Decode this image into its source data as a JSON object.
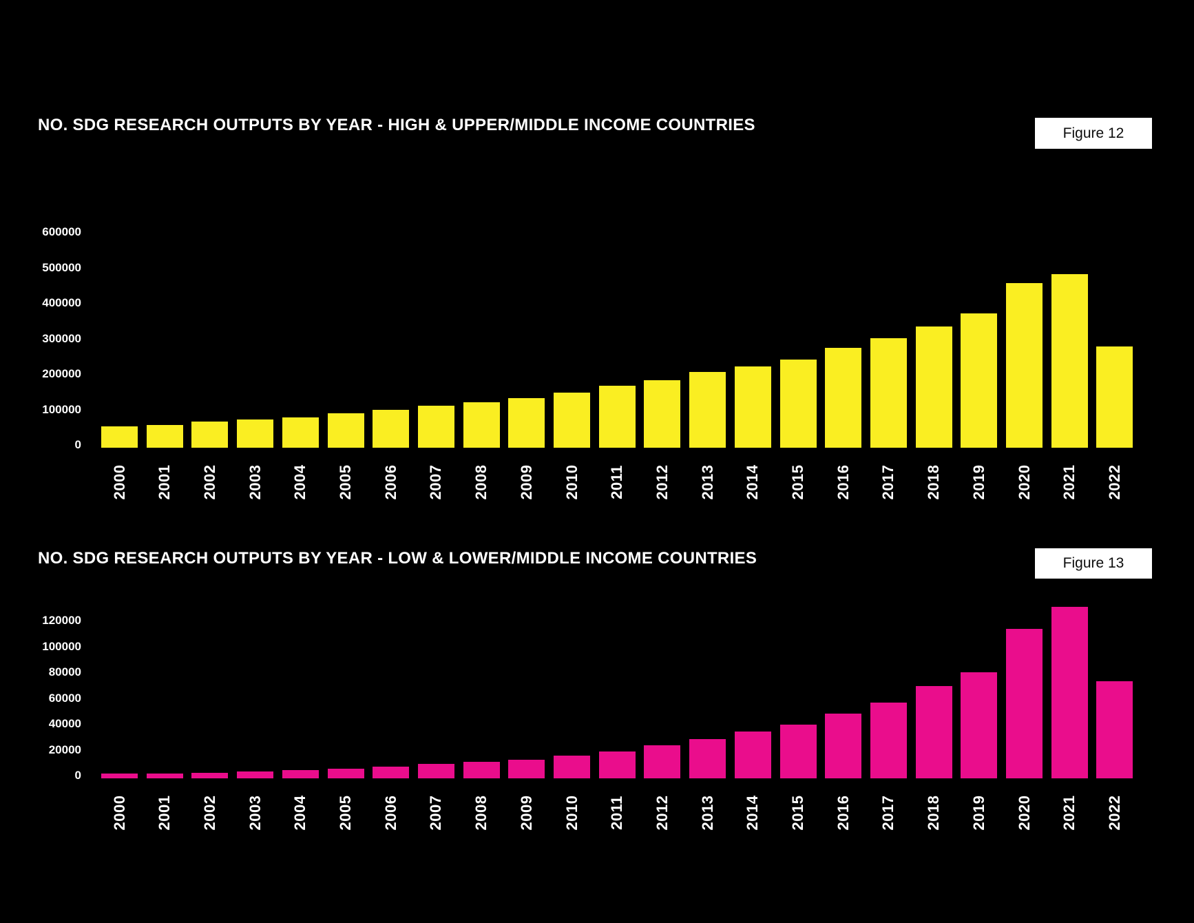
{
  "page": {
    "background_color": "#000000",
    "text_color": "#FFFFFF"
  },
  "chart_data": [
    {
      "type": "bar",
      "title": "NO. SDG RESEARCH OUTPUTS BY YEAR - HIGH & UPPER/MIDDLE INCOME COUNTRIES",
      "figure_label": "Figure 12",
      "bar_color": "#FAEE22",
      "label_color": "#FFFFFF",
      "categories": [
        "2000",
        "2001",
        "2002",
        "2003",
        "2004",
        "2005",
        "2006",
        "2007",
        "2008",
        "2009",
        "2010",
        "2011",
        "2012",
        "2013",
        "2014",
        "2015",
        "2016",
        "2017",
        "2018",
        "2019",
        "2020",
        "2021",
        "2022"
      ],
      "values": [
        61000,
        64000,
        74000,
        80000,
        85000,
        98000,
        107000,
        118000,
        129000,
        139000,
        156000,
        175000,
        190000,
        214000,
        230000,
        249000,
        281000,
        308000,
        342000,
        379000,
        464000,
        490000,
        285000
      ],
      "xlabel": "",
      "ylabel": "",
      "ylim": [
        0,
        600000
      ],
      "yticks": [
        0,
        100000,
        200000,
        300000,
        400000,
        500000,
        600000
      ],
      "grid": false,
      "legend": false
    },
    {
      "type": "bar",
      "title": "NO. SDG RESEARCH OUTPUTS BY YEAR - LOW & LOWER/MIDDLE INCOME COUNTRIES",
      "figure_label": "Figure 13",
      "bar_color": "#EA0D8C",
      "label_color": "#FFFFFF",
      "categories": [
        "2000",
        "2001",
        "2002",
        "2003",
        "2004",
        "2005",
        "2006",
        "2007",
        "2008",
        "2009",
        "2010",
        "2011",
        "2012",
        "2013",
        "2014",
        "2015",
        "2016",
        "2017",
        "2018",
        "2019",
        "2020",
        "2021",
        "2022"
      ],
      "values": [
        3500,
        3900,
        4400,
        5300,
        6200,
        7500,
        9200,
        11200,
        12700,
        14500,
        17600,
        20700,
        25400,
        30500,
        36300,
        41600,
        50000,
        58900,
        71300,
        82000,
        116000,
        133000,
        75000
      ],
      "xlabel": "",
      "ylabel": "",
      "ylim": [
        0,
        133000
      ],
      "yticks": [
        0,
        20000,
        40000,
        60000,
        80000,
        100000,
        120000
      ],
      "grid": false,
      "legend": false
    }
  ]
}
